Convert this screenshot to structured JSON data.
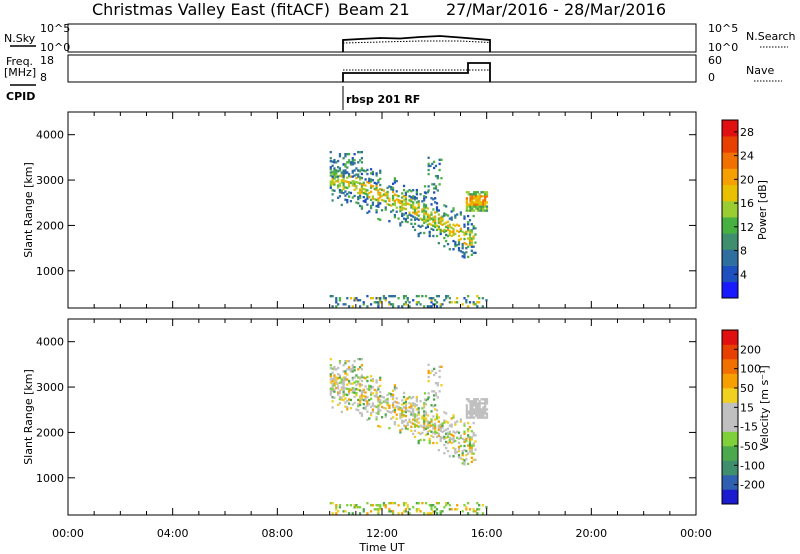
{
  "header": {
    "station": "Christmas Valley East (fitACF)",
    "beam": "Beam 21",
    "dates": "27/Mar/2016 - 28/Mar/2016"
  },
  "nsky_panel": {
    "label": "N.Sky",
    "right_label": "N.Search",
    "left_ticks": [
      "10^5",
      "10^0"
    ],
    "right_ticks": [
      "10^5",
      "10^0"
    ]
  },
  "freq_panel": {
    "label_line1": "Freq.",
    "label_line2": "[MHz]",
    "right_label": "Nave",
    "left_ticks": [
      "18",
      "8"
    ],
    "right_ticks": [
      "60",
      "0"
    ],
    "cpid_label": "CPID",
    "cpid_name": "rbsp 201 RF"
  },
  "chart_data": [
    {
      "type": "heatmap",
      "name": "power",
      "ylabel": "Slant Range [km]",
      "xlabel": "",
      "xlim_hours": [
        0,
        24
      ],
      "ylim_km": [
        180,
        4500
      ],
      "y_ticks": [
        "1000",
        "2000",
        "3000",
        "4000"
      ],
      "colorbar": {
        "label": "Power [dB]",
        "ticks": [
          "4",
          "8",
          "12",
          "16",
          "20",
          "24",
          "28"
        ],
        "colors": [
          "#1a1aff",
          "#1e4fbf",
          "#2e6f9f",
          "#3f8f6f",
          "#48b040",
          "#9acd32",
          "#e8c000",
          "#f5a000",
          "#f07000",
          "#e84000",
          "#e01010"
        ],
        "range": [
          0,
          30
        ]
      },
      "data_window_hours": [
        10,
        16
      ]
    },
    {
      "type": "heatmap",
      "name": "velocity",
      "ylabel": "Slant Range [km]",
      "xlabel": "Time UT",
      "xlim_hours": [
        0,
        24
      ],
      "ylim_km": [
        180,
        4500
      ],
      "y_ticks": [
        "1000",
        "2000",
        "3000",
        "4000"
      ],
      "x_ticks": [
        "00:00",
        "04:00",
        "08:00",
        "12:00",
        "16:00",
        "20:00",
        "00:00"
      ],
      "colorbar": {
        "label": "Velocity [m s⁻¹]",
        "ticks": [
          "200",
          "100",
          "50",
          "15",
          "-15",
          "-50",
          "-100",
          "-200"
        ],
        "colors": [
          "#1a1acf",
          "#2f5faf",
          "#3f8f6f",
          "#4ca84c",
          "#7fd03a",
          "#c0c0c0",
          "#c0c0c0",
          "#f0d020",
          "#f5a000",
          "#f07000",
          "#e84000",
          "#e01010"
        ]
      },
      "data_window_hours": [
        10,
        16
      ]
    }
  ]
}
